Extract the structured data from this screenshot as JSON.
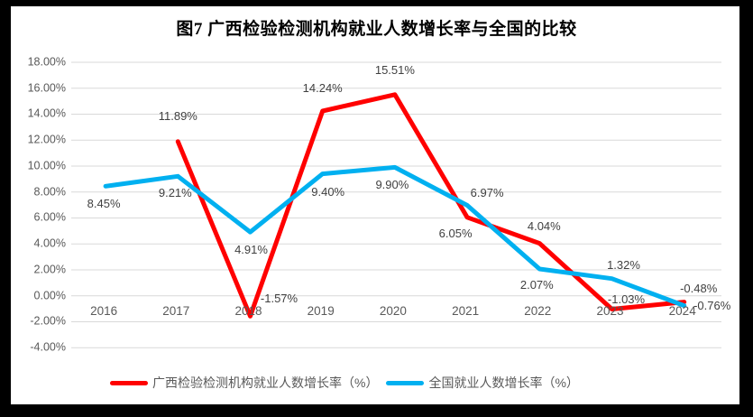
{
  "title": "图7 广西检验检测机构就业人数增长率与全国的比较",
  "frame_color": "#000000",
  "chart_background": "#ffffff",
  "gridline_color": "#d9d9d9",
  "axis_text_color": "#595959",
  "data_label_color": "#404040",
  "chart_data": {
    "type": "line",
    "categories": [
      "2016",
      "2017",
      "2018",
      "2019",
      "2020",
      "2021",
      "2022",
      "2023",
      "2024"
    ],
    "series": [
      {
        "name": "广西检验检测机构就业人数增长率（%）",
        "color": "#ff0000",
        "values": [
          null,
          11.89,
          -1.57,
          14.24,
          15.51,
          6.05,
          4.04,
          -1.03,
          -0.48
        ],
        "labels": [
          null,
          "11.89%",
          "-1.57%",
          "14.24%",
          "15.51%",
          "6.05%",
          "4.04%",
          "-1.03%",
          "-0.48%"
        ]
      },
      {
        "name": "全国就业人数增长率（%）",
        "color": "#00b0f0",
        "values": [
          8.45,
          9.21,
          4.91,
          9.4,
          9.9,
          6.97,
          2.07,
          1.32,
          -0.76
        ],
        "labels": [
          "8.45%",
          "9.21%",
          "4.91%",
          "9.40%",
          "9.90%",
          "6.97%",
          "2.07%",
          "1.32%",
          "-0.76%"
        ]
      }
    ],
    "y_axis": {
      "min": -4,
      "max": 18,
      "step": 2,
      "tick_labels": [
        "18.00%",
        "16.00%",
        "14.00%",
        "12.00%",
        "10.00%",
        "8.00%",
        "6.00%",
        "4.00%",
        "2.00%",
        "0.00%",
        "-2.00%",
        "-4.00%"
      ]
    },
    "grid": true,
    "legend_position": "bottom"
  }
}
